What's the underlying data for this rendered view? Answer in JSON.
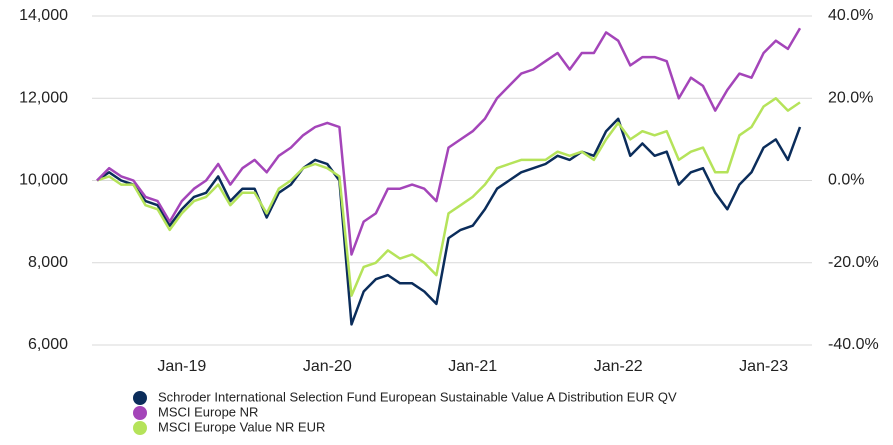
{
  "chart_data": {
    "type": "line",
    "categories": [
      null,
      null,
      null,
      null,
      null,
      null,
      null,
      "Jan-19",
      null,
      null,
      null,
      null,
      null,
      null,
      null,
      null,
      null,
      null,
      null,
      "Jan-20",
      null,
      null,
      null,
      null,
      null,
      null,
      null,
      null,
      null,
      null,
      null,
      "Jan-21",
      null,
      null,
      null,
      null,
      null,
      null,
      null,
      null,
      null,
      null,
      null,
      "Jan-22",
      null,
      null,
      null,
      null,
      null,
      null,
      null,
      null,
      null,
      null,
      null,
      "Jan-23",
      null,
      null,
      null
    ],
    "series": [
      {
        "name": "Schroder International Selection Fund European Sustainable Value A Distribution EUR QV",
        "color": "#0b2d5b",
        "values": [
          10000,
          10200,
          10000,
          9900,
          9500,
          9400,
          8900,
          9300,
          9600,
          9700,
          10100,
          9500,
          9800,
          9800,
          9100,
          9700,
          9900,
          10300,
          10500,
          10400,
          10000,
          6500,
          7300,
          7600,
          7700,
          7500,
          7500,
          7300,
          7000,
          8600,
          8800,
          8900,
          9300,
          9800,
          10000,
          10200,
          10300,
          10400,
          10600,
          10500,
          10700,
          10600,
          11200,
          11500,
          10600,
          10900,
          10600,
          10700,
          9900,
          10200,
          10300,
          9700,
          9300,
          9900,
          10200,
          10800,
          11000,
          10500,
          11300
        ]
      },
      {
        "name": "MSCI Europe NR",
        "color": "#a445b9",
        "values": [
          10000,
          10300,
          10100,
          10000,
          9600,
          9500,
          9000,
          9500,
          9800,
          10000,
          10400,
          9900,
          10300,
          10500,
          10200,
          10600,
          10800,
          11100,
          11300,
          11400,
          11300,
          8200,
          9000,
          9200,
          9800,
          9800,
          9900,
          9800,
          9500,
          10800,
          11000,
          11200,
          11500,
          12000,
          12300,
          12600,
          12700,
          12900,
          13100,
          12700,
          13100,
          13100,
          13600,
          13400,
          12800,
          13000,
          13000,
          12900,
          12000,
          12500,
          12300,
          11700,
          12200,
          12600,
          12500,
          13100,
          13400,
          13200,
          13700
        ]
      },
      {
        "name": "MSCI Europe Value NR EUR",
        "color": "#b5e35a",
        "values": [
          10000,
          10100,
          9900,
          9900,
          9400,
          9300,
          8800,
          9200,
          9500,
          9600,
          9900,
          9400,
          9700,
          9700,
          9200,
          9800,
          10000,
          10300,
          10400,
          10300,
          10100,
          7200,
          7900,
          8000,
          8300,
          8100,
          8200,
          8000,
          7700,
          9200,
          9400,
          9600,
          9900,
          10300,
          10400,
          10500,
          10500,
          10500,
          10700,
          10600,
          10700,
          10500,
          11000,
          11400,
          11000,
          11200,
          11100,
          11200,
          10500,
          10700,
          10800,
          10200,
          10200,
          11100,
          11300,
          11800,
          12000,
          11700,
          11900
        ]
      }
    ],
    "ylim": [
      6000,
      14000
    ],
    "yticks": [
      {
        "value": 6000,
        "label": "6,000"
      },
      {
        "value": 8000,
        "label": "8,000"
      },
      {
        "value": 10000,
        "label": "10,000"
      },
      {
        "value": 12000,
        "label": "12,000"
      },
      {
        "value": 14000,
        "label": "14,000"
      }
    ],
    "y2lim": [
      -40,
      40
    ],
    "y2ticks": [
      {
        "value": -40,
        "label": "-40.0%"
      },
      {
        "value": -20,
        "label": "-20.0%"
      },
      {
        "value": 0,
        "label": "0.0%"
      },
      {
        "value": 20,
        "label": "20.0%"
      },
      {
        "value": 40,
        "label": "40.0%"
      }
    ],
    "grid": true
  }
}
